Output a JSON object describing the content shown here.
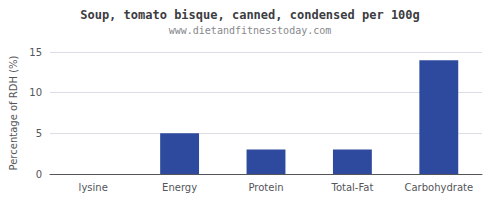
{
  "chart_data": {
    "type": "bar",
    "title": "Soup, tomato bisque, canned, condensed per 100g",
    "subtitle": "www.dietandfitnesstoday.com",
    "categories": [
      "lysine",
      "Energy",
      "Protein",
      "Total-Fat",
      "Carbohydrate"
    ],
    "values": [
      0,
      5.0,
      3.0,
      3.0,
      14.0
    ],
    "color": "#2e4a9e",
    "ylabel": "Percentage of RDH (%)",
    "ylim": [
      0,
      15
    ],
    "yticks": [
      0,
      5,
      10,
      15
    ],
    "grid": true
  }
}
